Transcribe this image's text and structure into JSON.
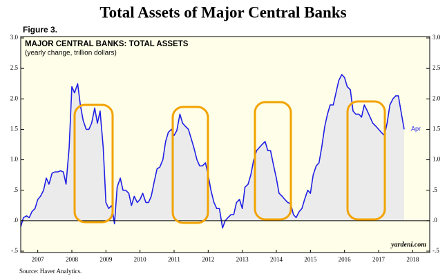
{
  "chart_data": {
    "type": "line",
    "title": "Total Assets of Major Central Banks",
    "figure_label": "Figure 3.",
    "panel_title": "MAJOR CENTRAL BANKS: TOTAL ASSETS",
    "panel_subtitle": "(yearly change, trillion dollars)",
    "end_label": "Apr",
    "credit": "yardeni.com",
    "source": "Source: Haver Analytics.",
    "color": "#1f1fe6",
    "area_color": "#ebebeb",
    "x": [
      2007,
      2007.08,
      2007.17,
      2007.25,
      2007.33,
      2007.42,
      2007.5,
      2007.58,
      2007.67,
      2007.75,
      2007.83,
      2007.92,
      2008,
      2008.08,
      2008.17,
      2008.25,
      2008.33,
      2008.42,
      2008.5,
      2008.58,
      2008.67,
      2008.75,
      2008.83,
      2008.92,
      2009,
      2009.08,
      2009.17,
      2009.25,
      2009.33,
      2009.42,
      2009.5,
      2009.58,
      2009.67,
      2009.75,
      2009.83,
      2009.92,
      2010,
      2010.08,
      2010.17,
      2010.25,
      2010.33,
      2010.42,
      2010.5,
      2010.58,
      2010.67,
      2010.75,
      2010.83,
      2010.92,
      2011,
      2011.08,
      2011.17,
      2011.25,
      2011.33,
      2011.42,
      2011.5,
      2011.58,
      2011.67,
      2011.75,
      2011.83,
      2011.92,
      2012,
      2012.08,
      2012.17,
      2012.25,
      2012.33,
      2012.42,
      2012.5,
      2012.58,
      2012.67,
      2012.75,
      2012.83,
      2012.92,
      2013,
      2013.08,
      2013.17,
      2013.25,
      2013.33,
      2013.42,
      2013.5,
      2013.58,
      2013.67,
      2013.75,
      2013.83,
      2013.92,
      2014,
      2014.08,
      2014.17,
      2014.25,
      2014.33,
      2014.42,
      2014.5,
      2014.58,
      2014.67,
      2014.75,
      2014.83,
      2014.92,
      2015,
      2015.08,
      2015.17,
      2015.25,
      2015.33,
      2015.42,
      2015.5,
      2015.58,
      2015.67,
      2015.75,
      2015.83,
      2015.92,
      2016,
      2016.08,
      2016.17,
      2016.25,
      2016.33,
      2016.42,
      2016.5,
      2016.58,
      2016.67,
      2016.75,
      2016.83,
      2016.92,
      2017,
      2017.08,
      2017.17,
      2017.25,
      2017.33,
      2017.42,
      2017.5,
      2017.58,
      2017.67,
      2017.75,
      2017.83,
      2017.92,
      2018,
      2018.08,
      2018.17,
      2018.25
    ],
    "values": [
      -0.1,
      0.05,
      0.08,
      0.05,
      0.15,
      0.2,
      0.35,
      0.4,
      0.5,
      0.7,
      0.6,
      0.78,
      0.8,
      0.8,
      0.82,
      0.8,
      0.6,
      1.2,
      2.2,
      2.1,
      2.25,
      1.9,
      1.65,
      1.5,
      1.5,
      1.6,
      1.85,
      1.6,
      1.8,
      1.2,
      0.3,
      0.2,
      0.25,
      -0.05,
      0.55,
      0.7,
      0.5,
      0.5,
      0.45,
      0.25,
      0.4,
      0.3,
      0.35,
      0.45,
      0.3,
      0.3,
      0.4,
      0.65,
      0.85,
      0.88,
      1.0,
      1.3,
      1.45,
      1.5,
      1.4,
      1.48,
      1.75,
      1.6,
      1.55,
      1.5,
      1.35,
      1.2,
      1.0,
      0.9,
      0.9,
      0.95,
      0.75,
      0.5,
      0.3,
      0.2,
      0.2,
      -0.12,
      0.0,
      0.05,
      0.1,
      0.1,
      0.3,
      0.35,
      0.2,
      0.55,
      0.6,
      0.75,
      0.98,
      1.15,
      1.2,
      1.25,
      1.3,
      1.15,
      1.15,
      0.9,
      0.7,
      0.45,
      0.4,
      0.35,
      0.3,
      0.28,
      0.1,
      0.05,
      0.15,
      0.2,
      0.35,
      0.5,
      0.45,
      0.75,
      0.9,
      0.95,
      1.2,
      1.55,
      1.75,
      1.9,
      1.9,
      2.1,
      2.3,
      2.4,
      2.35,
      2.2,
      2.15,
      1.8,
      1.75,
      1.75,
      1.7,
      1.9,
      1.8,
      1.7,
      1.6,
      1.55,
      1.5,
      1.45,
      1.4,
      1.6,
      1.9,
      2.0,
      2.05,
      2.05,
      1.75,
      1.5
    ],
    "xlim": [
      2007,
      2019
    ],
    "xticks": [
      {
        "value": 2007.5,
        "label": "2007"
      },
      {
        "value": 2008.5,
        "label": "2008"
      },
      {
        "value": 2009.5,
        "label": "2009"
      },
      {
        "value": 2010.5,
        "label": "2010"
      },
      {
        "value": 2011.5,
        "label": "2011"
      },
      {
        "value": 2012.5,
        "label": "2012"
      },
      {
        "value": 2013.5,
        "label": "2013"
      },
      {
        "value": 2014.5,
        "label": "2014"
      },
      {
        "value": 2015.5,
        "label": "2015"
      },
      {
        "value": 2016.5,
        "label": "2016"
      },
      {
        "value": 2017.5,
        "label": "2017"
      },
      {
        "value": 2018.5,
        "label": "2018"
      }
    ],
    "ylim": [
      -0.5,
      3.0
    ],
    "yticks": [
      {
        "value": -0.5,
        "label": "-.5"
      },
      {
        "value": 0,
        "label": ".0"
      },
      {
        "value": 0.5,
        "label": ".5"
      },
      {
        "value": 1.0,
        "label": "1.0"
      },
      {
        "value": 1.5,
        "label": "1.5"
      },
      {
        "value": 2.0,
        "label": "2.0"
      },
      {
        "value": 2.5,
        "label": "2.5"
      },
      {
        "value": 3.0,
        "label": "3.0"
      }
    ]
  }
}
